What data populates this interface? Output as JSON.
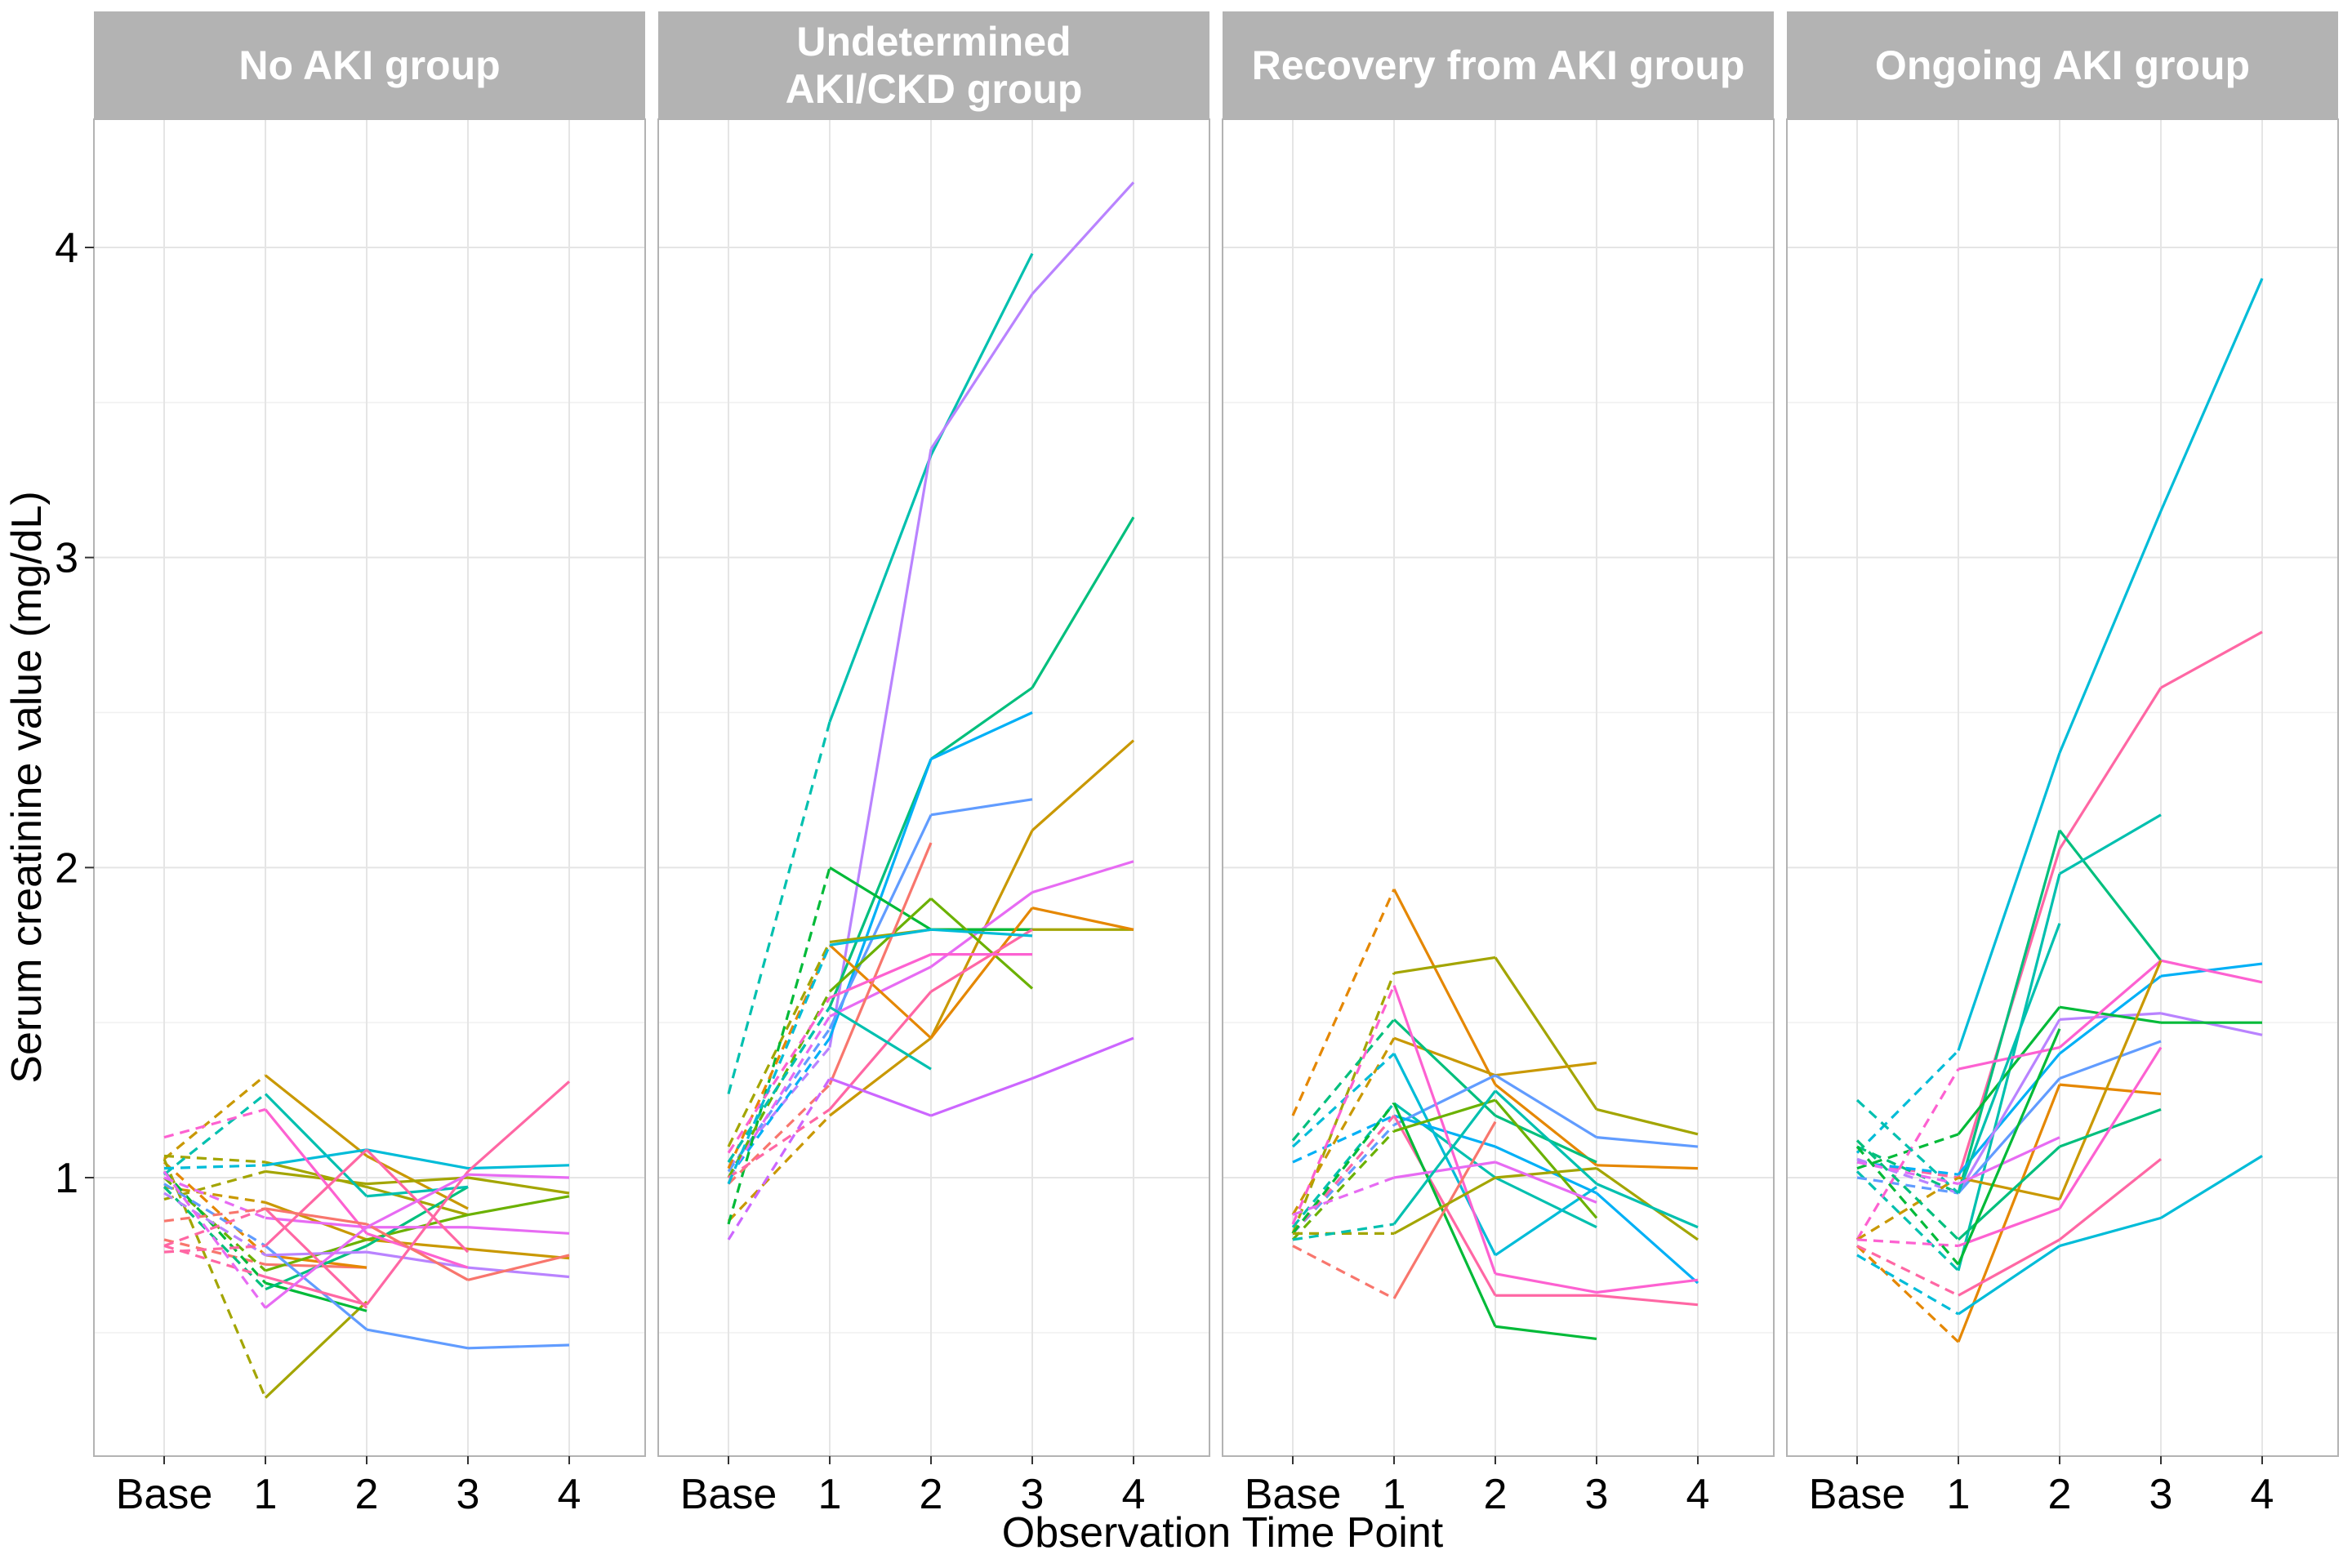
{
  "chart_data": {
    "type": "line",
    "xlabel": "Observation Time Point",
    "ylabel": "Serum creatinine value (mg/dL)",
    "x_categories": [
      "Base",
      "1",
      "2",
      "3",
      "4"
    ],
    "y_ticks": [
      1,
      2,
      3,
      4
    ],
    "ylim": [
      0.1,
      4.4
    ],
    "grid": true,
    "line_style_note": "segment from Base to 1 is dashed; later segments solid",
    "colors": [
      "#F8766D",
      "#E58700",
      "#C99800",
      "#A3A500",
      "#6BB100",
      "#00BA38",
      "#00BF7D",
      "#00C0AF",
      "#00BCD8",
      "#00B0F6",
      "#619CFF",
      "#B983FF",
      "#E76BF3",
      "#FD61D1",
      "#FF67A4"
    ],
    "panels": [
      {
        "title": "No AKI group",
        "series": [
          {
            "color": "#F8766D",
            "values": [
              0.8,
              0.72,
              0.71,
              null,
              null
            ]
          },
          {
            "color": "#E58700",
            "values": [
              1.05,
              0.75,
              0.71,
              null,
              null
            ]
          },
          {
            "color": "#C99800",
            "values": [
              1.06,
              1.33,
              1.07,
              0.9,
              null
            ]
          },
          {
            "color": "#A3A500",
            "values": [
              1.07,
              1.05,
              0.97,
              0.88,
              null
            ]
          },
          {
            "color": "#A3A500",
            "values": [
              1.06,
              0.29,
              0.6,
              null,
              null
            ]
          },
          {
            "color": "#A3A500",
            "values": [
              0.93,
              1.02,
              0.98,
              1.0,
              0.95
            ]
          },
          {
            "color": "#C99800",
            "values": [
              0.97,
              0.92,
              0.8,
              0.77,
              0.74
            ]
          },
          {
            "color": "#6BB100",
            "values": [
              1.0,
              0.7,
              0.8,
              0.88,
              0.94
            ]
          },
          {
            "color": "#00BA38",
            "values": [
              1.02,
              0.66,
              0.57,
              null,
              null
            ]
          },
          {
            "color": "#00BF7D",
            "values": [
              0.97,
              0.64,
              0.78,
              0.97,
              null
            ]
          },
          {
            "color": "#00C0AF",
            "values": [
              1.01,
              1.27,
              0.94,
              0.97,
              null
            ]
          },
          {
            "color": "#00BCD8",
            "values": [
              1.03,
              1.04,
              1.09,
              1.03,
              1.04
            ]
          },
          {
            "color": "#619CFF",
            "values": [
              0.98,
              0.78,
              0.51,
              0.45,
              0.46
            ]
          },
          {
            "color": "#B983FF",
            "values": [
              0.95,
              0.75,
              0.76,
              0.71,
              0.68
            ]
          },
          {
            "color": "#E76BF3",
            "values": [
              1.0,
              0.87,
              0.84,
              0.84,
              0.82
            ]
          },
          {
            "color": "#FD61D1",
            "values": [
              1.13,
              1.22,
              0.82,
              0.71,
              null
            ]
          },
          {
            "color": "#FF67A4",
            "values": [
              0.76,
              0.78,
              1.09,
              0.76,
              null
            ]
          },
          {
            "color": "#FF67A4",
            "values": [
              0.78,
              0.9,
              0.58,
              null,
              null
            ]
          },
          {
            "color": "#F8766D",
            "values": [
              0.86,
              0.9,
              0.85,
              0.67,
              0.75
            ]
          },
          {
            "color": "#FF67A4",
            "values": [
              0.78,
              0.68,
              0.59,
              1.02,
              1.31
            ]
          },
          {
            "color": "#E76BF3",
            "values": [
              1.02,
              0.58,
              0.84,
              1.01,
              1.0
            ]
          }
        ]
      },
      {
        "title": "Undetermined\nAKI/CKD group",
        "series": [
          {
            "color": "#00C0AF",
            "values": [
              1.27,
              2.47,
              3.33,
              3.98,
              null
            ]
          },
          {
            "color": "#B983FF",
            "values": [
              1.03,
              1.42,
              3.35,
              3.85,
              4.21
            ]
          },
          {
            "color": "#00BF7D",
            "values": [
              1.05,
              1.55,
              2.35,
              2.58,
              3.13
            ]
          },
          {
            "color": "#00B0F6",
            "values": [
              1.0,
              1.45,
              2.35,
              2.5,
              null
            ]
          },
          {
            "color": "#C99800",
            "values": [
              0.86,
              1.2,
              1.45,
              2.12,
              2.41
            ]
          },
          {
            "color": "#619CFF",
            "values": [
              1.02,
              1.48,
              2.17,
              2.22,
              null
            ]
          },
          {
            "color": "#E76BF3",
            "values": [
              1.0,
              1.52,
              1.68,
              1.92,
              2.02
            ]
          },
          {
            "color": "#A3A500",
            "values": [
              1.1,
              1.76,
              1.8,
              1.8,
              1.8
            ]
          },
          {
            "color": "#00BA38",
            "values": [
              0.85,
              2.0,
              1.8,
              1.8,
              null
            ]
          },
          {
            "color": "#6BB100",
            "values": [
              1.0,
              1.6,
              1.9,
              1.61,
              null
            ]
          },
          {
            "color": "#E58700",
            "values": [
              1.03,
              1.75,
              1.45,
              1.87,
              1.8
            ]
          },
          {
            "color": "#F8766D",
            "values": [
              0.98,
              1.3,
              2.08,
              null,
              null
            ]
          },
          {
            "color": "#FF67A4",
            "values": [
              1.0,
              1.22,
              1.6,
              1.8,
              null
            ]
          },
          {
            "color": "#00C0AF",
            "values": [
              1.05,
              1.55,
              1.35,
              null,
              null
            ]
          },
          {
            "color": "#CC66FF",
            "values": [
              0.8,
              1.32,
              1.2,
              1.32,
              1.45
            ]
          },
          {
            "color": "#FD61D1",
            "values": [
              1.08,
              1.58,
              1.72,
              1.72,
              null
            ]
          },
          {
            "color": "#00BCD8",
            "values": [
              0.98,
              1.75,
              1.8,
              1.78,
              null
            ]
          }
        ]
      },
      {
        "title": "Recovery from AKI group",
        "series": [
          {
            "color": "#E58700",
            "values": [
              1.2,
              1.93,
              1.3,
              1.04,
              1.03
            ]
          },
          {
            "color": "#A3A500",
            "values": [
              0.82,
              1.66,
              1.71,
              1.22,
              1.14
            ]
          },
          {
            "color": "#C99800",
            "values": [
              0.88,
              1.45,
              1.33,
              1.37,
              null
            ]
          },
          {
            "color": "#00BF7D",
            "values": [
              1.12,
              1.51,
              1.2,
              1.05,
              null
            ]
          },
          {
            "color": "#00C0AF",
            "values": [
              0.84,
              1.24,
              1.0,
              0.84,
              null
            ]
          },
          {
            "color": "#619CFF",
            "values": [
              0.82,
              1.17,
              1.33,
              1.13,
              1.1
            ]
          },
          {
            "color": "#00BCD8",
            "values": [
              1.1,
              1.4,
              0.75,
              0.97,
              null
            ]
          },
          {
            "color": "#00B0F6",
            "values": [
              1.05,
              1.2,
              1.1,
              0.95,
              0.66
            ]
          },
          {
            "color": "#FD61D1",
            "values": [
              0.85,
              1.62,
              0.69,
              0.63,
              0.67
            ]
          },
          {
            "color": "#FF67A4",
            "values": [
              0.82,
              1.2,
              0.62,
              0.62,
              0.59
            ]
          },
          {
            "color": "#00BA38",
            "values": [
              0.82,
              1.24,
              0.52,
              0.48,
              null
            ]
          },
          {
            "color": "#F8766D",
            "values": [
              0.78,
              0.61,
              1.18,
              null,
              null
            ]
          },
          {
            "color": "#6BB100",
            "values": [
              0.8,
              1.15,
              1.25,
              0.87,
              null
            ]
          },
          {
            "color": "#A3A500",
            "values": [
              0.82,
              0.82,
              1.0,
              1.03,
              0.8
            ]
          },
          {
            "color": "#E76BF3",
            "values": [
              0.88,
              1.0,
              1.05,
              0.92,
              null
            ]
          },
          {
            "color": "#00C0AF",
            "values": [
              0.8,
              0.85,
              1.28,
              0.98,
              0.84
            ]
          }
        ]
      },
      {
        "title": "Ongoing AKI group",
        "series": [
          {
            "color": "#00BCD8",
            "values": [
              1.08,
              1.41,
              2.37,
              3.15,
              3.9
            ]
          },
          {
            "color": "#FF67A4",
            "values": [
              1.05,
              1.0,
              2.06,
              2.58,
              2.76
            ]
          },
          {
            "color": "#00BF7D",
            "values": [
              1.1,
              0.95,
              2.12,
              1.7,
              null
            ]
          },
          {
            "color": "#00C0AF",
            "values": [
              1.02,
              0.7,
              1.98,
              2.17,
              null
            ]
          },
          {
            "color": "#00B0F6",
            "values": [
              1.05,
              1.01,
              1.4,
              1.65,
              1.69
            ]
          },
          {
            "color": "#B983FF",
            "values": [
              1.06,
              0.95,
              1.51,
              1.53,
              1.46
            ]
          },
          {
            "color": "#00BA38",
            "values": [
              1.03,
              1.14,
              1.55,
              1.5,
              1.5
            ]
          },
          {
            "color": "#619CFF",
            "values": [
              1.0,
              0.95,
              1.32,
              1.44,
              null
            ]
          },
          {
            "color": "#FD61D1",
            "values": [
              0.8,
              1.35,
              1.42,
              1.7,
              1.63
            ]
          },
          {
            "color": "#E58700",
            "values": [
              0.78,
              0.47,
              1.3,
              1.27,
              null
            ]
          },
          {
            "color": "#C99800",
            "values": [
              0.8,
              1.0,
              0.93,
              1.7,
              null
            ]
          },
          {
            "color": "#00BF7D",
            "values": [
              1.12,
              0.8,
              1.1,
              1.22,
              null
            ]
          },
          {
            "color": "#00BCD8",
            "values": [
              0.75,
              0.56,
              0.78,
              0.87,
              1.07
            ]
          },
          {
            "color": "#FF67A4",
            "values": [
              0.78,
              0.62,
              0.8,
              1.06,
              null
            ]
          },
          {
            "color": "#FD61D1",
            "values": [
              0.8,
              0.78,
              0.9,
              1.42,
              null
            ]
          },
          {
            "color": "#00C0AF",
            "values": [
              1.25,
              0.95,
              1.82,
              null,
              null
            ]
          },
          {
            "color": "#E76BF3",
            "values": [
              1.05,
              0.98,
              1.13,
              null,
              null
            ]
          },
          {
            "color": "#00BA38",
            "values": [
              1.1,
              0.72,
              1.48,
              null,
              null
            ]
          }
        ]
      }
    ]
  }
}
